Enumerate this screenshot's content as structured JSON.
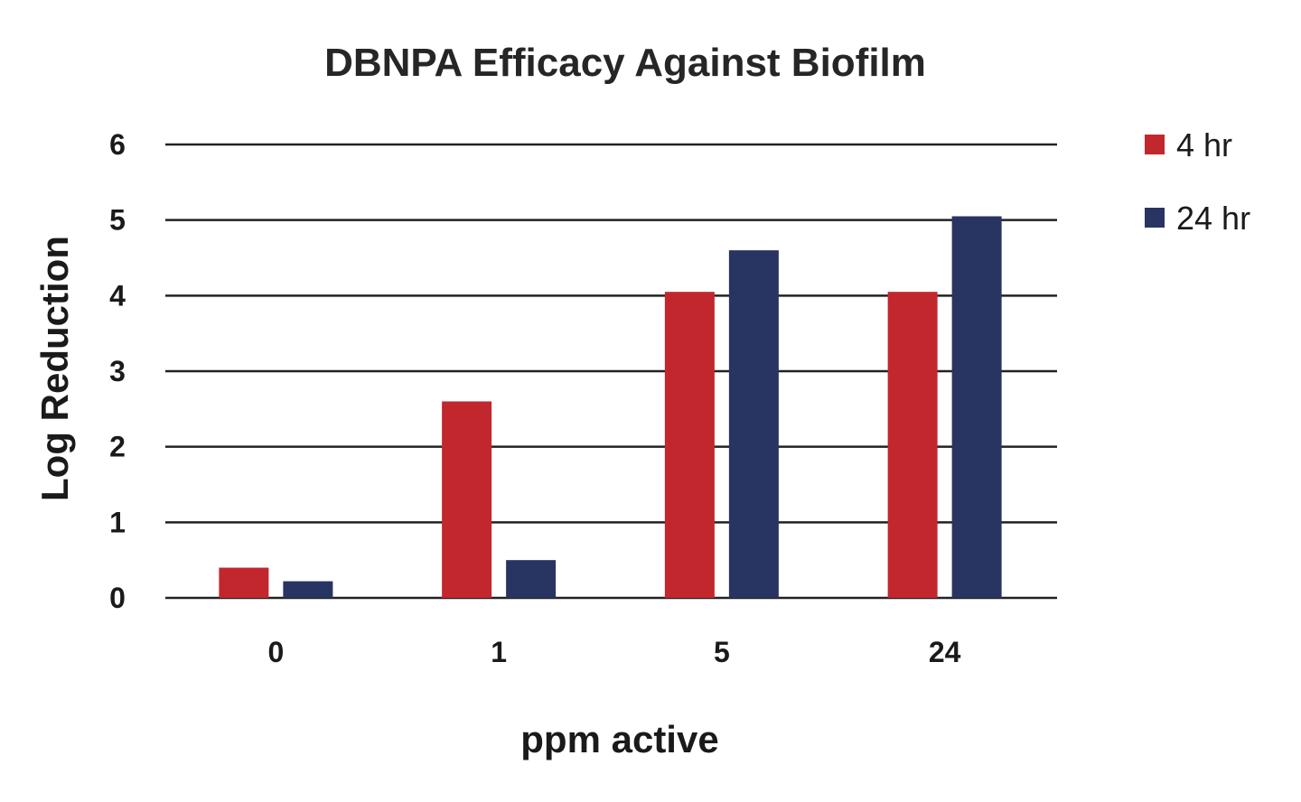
{
  "chart_data": {
    "type": "bar",
    "title": "DBNPA Efficacy Against Biofilm",
    "xlabel": "ppm active",
    "ylabel": "Log Reduction",
    "categories": [
      "0",
      "1",
      "5",
      "24"
    ],
    "series": [
      {
        "name": "4 hr",
        "color": "#c1272d",
        "values": [
          0.4,
          2.6,
          4.05,
          4.05
        ]
      },
      {
        "name": "24 hr",
        "color": "#283461",
        "values": [
          0.22,
          0.5,
          4.6,
          5.05
        ]
      }
    ],
    "ylim": [
      0,
      6
    ],
    "yticks": [
      0,
      1,
      2,
      3,
      4,
      5,
      6
    ],
    "grid": true,
    "legend": "right"
  }
}
